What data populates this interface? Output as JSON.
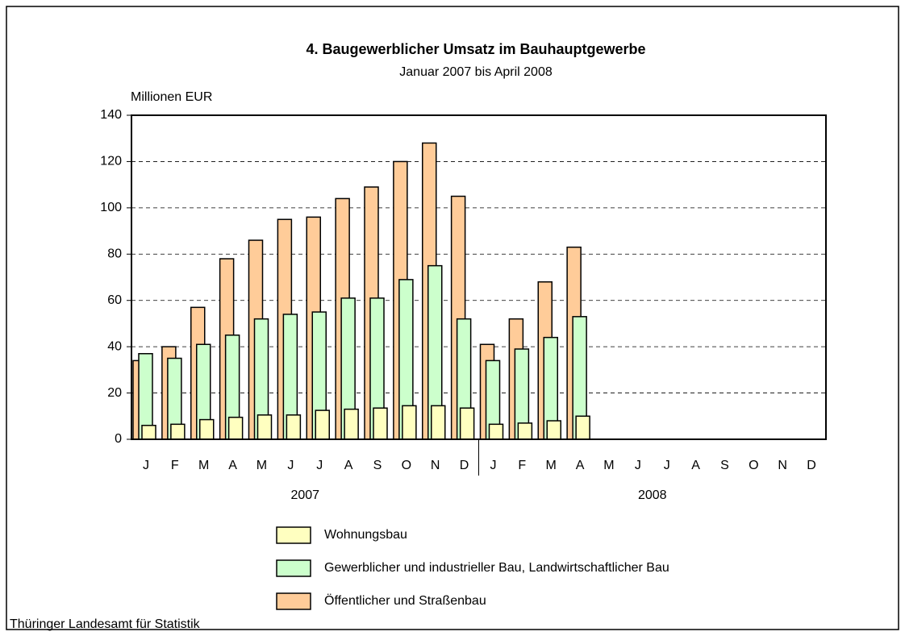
{
  "chart_data": {
    "type": "bar",
    "title": "4. Baugewerblicher Umsatz im Bauhauptgewerbe",
    "subtitle": "Januar 2007 bis April 2008",
    "y_label": "Millionen EUR",
    "source": "Thüringer Landesamt für Statistik",
    "categories": [
      "J",
      "F",
      "M",
      "A",
      "M",
      "J",
      "J",
      "A",
      "S",
      "O",
      "N",
      "D",
      "J",
      "F",
      "M",
      "A",
      "M",
      "J",
      "J",
      "A",
      "S",
      "O",
      "N",
      "D"
    ],
    "groups": [
      "2007",
      "2008"
    ],
    "series": [
      {
        "name": "Wohnungsbau",
        "color": "#ffffc0",
        "values": [
          6,
          6.5,
          8.5,
          9.5,
          10.5,
          10.5,
          12.5,
          13,
          13.5,
          14.5,
          14.5,
          13.5,
          6.5,
          7,
          8,
          10,
          null,
          null,
          null,
          null,
          null,
          null,
          null,
          null
        ]
      },
      {
        "name": "Gewerblicher und industrieller Bau, Landwirtschaftlicher Bau",
        "color": "#ccffcc",
        "values": [
          37,
          35,
          41,
          45,
          52,
          54,
          55,
          61,
          61,
          69,
          75,
          52,
          34,
          39,
          44,
          53,
          null,
          null,
          null,
          null,
          null,
          null,
          null,
          null
        ]
      },
      {
        "name": "Öffentlicher und Straßenbau",
        "color": "#ffcc99",
        "values": [
          34,
          40,
          57,
          78,
          86,
          95,
          96,
          104,
          109,
          120,
          128,
          105,
          41,
          52,
          68,
          83,
          null,
          null,
          null,
          null,
          null,
          null,
          null,
          null
        ]
      }
    ],
    "ylim": [
      0,
      140
    ],
    "yticks": [
      0,
      20,
      40,
      60,
      80,
      100,
      120,
      140
    ],
    "grid": true
  }
}
